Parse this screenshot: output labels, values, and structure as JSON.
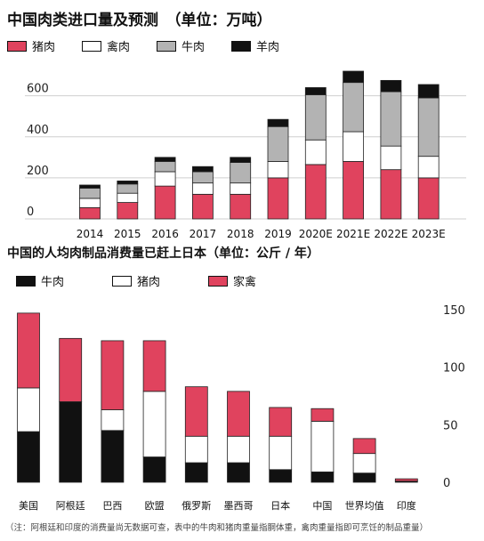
{
  "chart_data": [
    {
      "type": "bar",
      "stacked": true,
      "title": "中国肉类进口量及预测　（单位：万吨）",
      "categories": [
        "2014",
        "2015",
        "2016",
        "2017",
        "2018",
        "2019",
        "2020E",
        "2021E",
        "2022E",
        "2023E"
      ],
      "series": [
        {
          "name": "猪肉",
          "color": "#e0435e",
          "values": [
            55,
            80,
            160,
            120,
            120,
            200,
            265,
            280,
            240,
            200
          ]
        },
        {
          "name": "禽肉",
          "color": "#ffffff",
          "values": [
            45,
            45,
            70,
            55,
            55,
            80,
            120,
            145,
            115,
            105
          ]
        },
        {
          "name": "牛肉",
          "color": "#b3b3b3",
          "values": [
            50,
            45,
            50,
            55,
            100,
            170,
            220,
            240,
            265,
            285
          ]
        },
        {
          "name": "羊肉",
          "color": "#111111",
          "values": [
            15,
            15,
            20,
            25,
            25,
            35,
            35,
            55,
            55,
            65
          ]
        }
      ],
      "yticks": [
        0,
        200,
        400,
        600
      ],
      "ylim": [
        0,
        720
      ],
      "grid": true
    },
    {
      "type": "bar",
      "stacked": true,
      "title": "中国的人均肉制品消费量已赶上日本（单位：公斤 / 年）",
      "categories": [
        "美国",
        "阿根廷",
        "巴西",
        "欧盟",
        "俄罗斯",
        "墨西哥",
        "日本",
        "中国",
        "世界均值",
        "印度"
      ],
      "series": [
        {
          "name": "牛肉",
          "color": "#111111",
          "values": [
            44,
            70,
            45,
            22,
            17,
            17,
            11,
            9,
            8,
            1
          ]
        },
        {
          "name": "猪肉",
          "color": "#ffffff",
          "values": [
            38,
            0,
            18,
            57,
            23,
            23,
            29,
            44,
            17,
            0
          ]
        },
        {
          "name": "家禽",
          "color": "#e0435e",
          "values": [
            65,
            55,
            60,
            44,
            43,
            39,
            25,
            11,
            13,
            2
          ]
        }
      ],
      "yticks": [
        0,
        50,
        100,
        150
      ],
      "ylim": [
        0,
        150
      ],
      "yaxis_position": "right"
    }
  ],
  "footnote": "（注：阿根廷和印度的消费量尚无数据可查，表中的牛肉和猪肉重量指胴体重，禽肉重量指即可烹饪的制品重量）"
}
